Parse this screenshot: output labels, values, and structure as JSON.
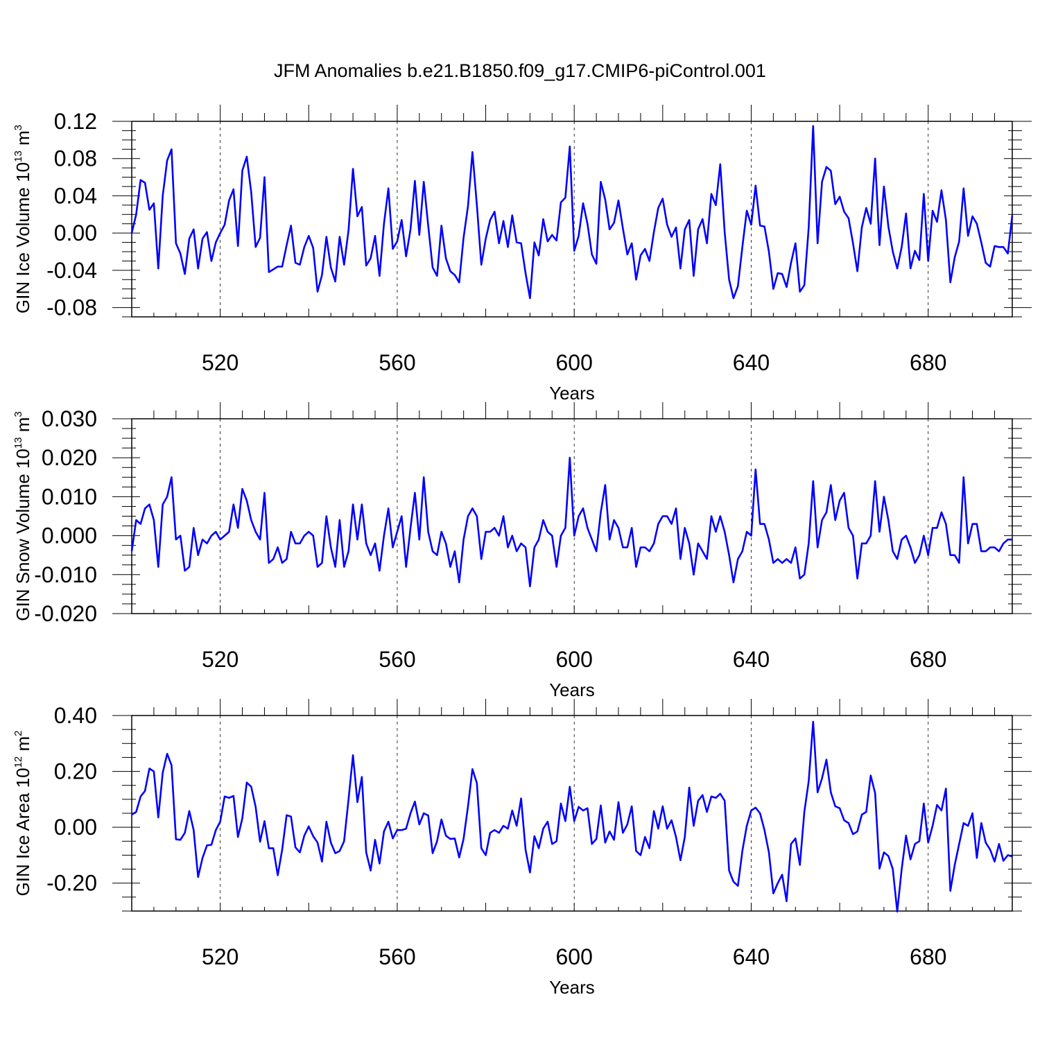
{
  "title": "JFM Anomalies b.e21.B1850.f09_g17.CMIP6-piControl.001",
  "line_color": "#0000ff",
  "chart_data": [
    {
      "type": "line",
      "ylabel": "GIN Ice Volume 10",
      "ylabel_exp": "13",
      "ylabel_unit": " m",
      "ylabel_unit_exp": "3",
      "xlabel": "Years",
      "xlim": [
        500,
        699
      ],
      "ylim": [
        -0.09,
        0.12
      ],
      "yticks": [
        "0.12",
        "0.08",
        "0.04",
        "0.00",
        "-0.04",
        "-0.08"
      ],
      "xticks": [
        "520",
        "560",
        "600",
        "640",
        "680"
      ],
      "series": [
        {
          "values": [
            0.0,
            0.02,
            0.057,
            0.054,
            0.025,
            0.032,
            -0.038,
            0.04,
            0.078,
            0.09,
            -0.011,
            -0.022,
            -0.044,
            -0.006,
            0.004,
            -0.038,
            -0.006,
            0.001,
            -0.03,
            -0.01,
            0.0,
            0.009,
            0.035,
            0.047,
            -0.014,
            0.067,
            0.082,
            0.044,
            -0.015,
            -0.005,
            0.06,
            -0.042,
            -0.039,
            -0.036,
            -0.036,
            -0.013,
            0.008,
            -0.032,
            -0.034,
            -0.015,
            -0.003,
            -0.016,
            -0.063,
            -0.045,
            -0.004,
            -0.037,
            -0.052,
            -0.004,
            -0.034,
            0.003,
            0.069,
            0.018,
            0.028,
            -0.035,
            -0.027,
            -0.003,
            -0.046,
            0.01,
            0.048,
            -0.017,
            -0.009,
            0.014,
            -0.025,
            0.004,
            0.056,
            -0.002,
            0.055,
            0.008,
            -0.037,
            -0.046,
            0.008,
            -0.027,
            -0.041,
            -0.045,
            -0.053,
            -0.005,
            0.029,
            0.087,
            0.03,
            -0.034,
            -0.006,
            0.014,
            0.023,
            -0.011,
            0.013,
            -0.015,
            0.019,
            -0.01,
            -0.011,
            -0.043,
            -0.07,
            -0.01,
            -0.024,
            0.015,
            -0.009,
            -0.002,
            -0.008,
            0.033,
            0.038,
            0.093,
            -0.019,
            -0.003,
            0.032,
            0.01,
            -0.023,
            -0.033,
            0.055,
            0.036,
            0.004,
            0.011,
            0.035,
            0.005,
            -0.023,
            -0.011,
            -0.05,
            -0.024,
            -0.017,
            -0.03,
            0.001,
            0.027,
            0.037,
            0.009,
            -0.004,
            0.006,
            -0.038,
            0.004,
            0.014,
            -0.046,
            0.004,
            0.015,
            -0.011,
            0.042,
            0.03,
            0.074,
            0.001,
            -0.05,
            -0.07,
            -0.057,
            -0.015,
            0.024,
            0.009,
            0.051,
            0.008,
            0.007,
            -0.02,
            -0.06,
            -0.043,
            -0.044,
            -0.058,
            -0.032,
            -0.011,
            -0.063,
            -0.056,
            0.006,
            0.115,
            -0.011,
            0.055,
            0.071,
            0.067,
            0.031,
            0.039,
            0.023,
            0.016,
            -0.011,
            -0.041,
            0.006,
            0.027,
            0.01,
            0.08,
            -0.013,
            0.05,
            0.007,
            -0.02,
            -0.038,
            -0.015,
            0.021,
            -0.038,
            -0.019,
            -0.029,
            0.042,
            -0.03,
            0.024,
            0.012,
            0.046,
            0.014,
            -0.053,
            -0.026,
            -0.009,
            0.048,
            -0.003,
            0.018,
            0.01,
            -0.01,
            -0.032,
            -0.036,
            -0.014,
            -0.015,
            -0.015,
            -0.022,
            0.019
          ]
        }
      ]
    },
    {
      "type": "line",
      "ylabel": "GIN Snow Volume 10",
      "ylabel_exp": "13",
      "ylabel_unit": " m",
      "ylabel_unit_exp": "3",
      "xlabel": "Years",
      "xlim": [
        500,
        699
      ],
      "ylim": [
        -0.02,
        0.03
      ],
      "yticks": [
        "0.030",
        "0.020",
        "0.010",
        "0.000",
        "-0.010",
        "-0.020"
      ],
      "xticks": [
        "520",
        "560",
        "600",
        "640",
        "680"
      ],
      "series": [
        {
          "values": [
            -0.004,
            0.004,
            0.003,
            0.007,
            0.008,
            0.004,
            -0.008,
            0.008,
            0.01,
            0.015,
            -0.001,
            0.0,
            -0.009,
            -0.008,
            0.002,
            -0.005,
            -0.001,
            -0.002,
            0.0,
            0.001,
            -0.001,
            0.0,
            0.001,
            0.008,
            0.002,
            0.012,
            0.009,
            0.004,
            0.001,
            -0.001,
            0.011,
            -0.007,
            -0.006,
            -0.003,
            -0.007,
            -0.006,
            0.001,
            -0.002,
            -0.002,
            0.0,
            0.001,
            0.0,
            -0.008,
            -0.007,
            0.005,
            -0.003,
            -0.008,
            0.004,
            -0.008,
            -0.004,
            0.008,
            -0.001,
            0.008,
            -0.002,
            -0.005,
            -0.002,
            -0.009,
            0.0,
            0.007,
            -0.003,
            0.001,
            0.005,
            -0.008,
            0.002,
            0.011,
            -0.001,
            0.015,
            0.001,
            -0.004,
            -0.005,
            0.001,
            -0.002,
            -0.008,
            -0.004,
            -0.012,
            -0.001,
            0.005,
            0.007,
            0.005,
            -0.006,
            0.001,
            0.001,
            0.002,
            0.0,
            0.005,
            -0.003,
            0.0,
            -0.004,
            -0.002,
            -0.003,
            -0.013,
            -0.003,
            -0.001,
            0.004,
            0.001,
            0.0,
            -0.008,
            0.0,
            0.002,
            0.02,
            0.0,
            0.005,
            0.007,
            0.002,
            -0.001,
            -0.004,
            0.006,
            0.013,
            -0.001,
            0.004,
            0.002,
            -0.003,
            -0.003,
            0.002,
            -0.008,
            -0.003,
            -0.003,
            -0.004,
            -0.002,
            0.003,
            0.005,
            0.005,
            0.003,
            0.007,
            -0.006,
            0.002,
            -0.002,
            -0.01,
            -0.002,
            -0.004,
            -0.006,
            0.005,
            0.001,
            0.005,
            0.001,
            -0.005,
            -0.012,
            -0.006,
            -0.004,
            0.001,
            0.0,
            0.017,
            0.003,
            0.003,
            -0.001,
            -0.007,
            -0.006,
            -0.007,
            -0.006,
            -0.007,
            -0.003,
            -0.011,
            -0.01,
            -0.002,
            0.014,
            -0.003,
            0.004,
            0.006,
            0.013,
            0.004,
            0.009,
            0.011,
            0.002,
            0.0,
            -0.011,
            -0.002,
            -0.002,
            0.0,
            0.014,
            0.001,
            0.01,
            0.004,
            -0.004,
            -0.006,
            -0.001,
            0.0,
            -0.003,
            -0.007,
            -0.005,
            0.0,
            -0.005,
            0.002,
            0.002,
            0.006,
            0.003,
            -0.005,
            -0.005,
            -0.007,
            0.015,
            -0.002,
            0.003,
            0.003,
            -0.004,
            -0.004,
            -0.003,
            -0.003,
            -0.004,
            -0.002,
            -0.001,
            -0.001
          ]
        }
      ]
    },
    {
      "type": "line",
      "ylabel": "GIN Ice Area 10",
      "ylabel_exp": "12",
      "ylabel_unit": " m",
      "ylabel_unit_exp": "2",
      "xlabel": "Years",
      "xlim": [
        500,
        699
      ],
      "ylim": [
        -0.3,
        0.4
      ],
      "yticks": [
        "0.40",
        "0.20",
        "0.00",
        "-0.20"
      ],
      "xticks": [
        "520",
        "560",
        "600",
        "640",
        "680"
      ],
      "series": [
        {
          "values": [
            0.045,
            0.055,
            0.11,
            0.13,
            0.21,
            0.2,
            0.035,
            0.195,
            0.263,
            0.222,
            -0.043,
            -0.045,
            -0.02,
            0.058,
            -0.01,
            -0.178,
            -0.11,
            -0.065,
            -0.063,
            -0.01,
            0.02,
            0.11,
            0.105,
            0.112,
            -0.035,
            0.032,
            0.16,
            0.145,
            0.073,
            -0.052,
            0.022,
            -0.075,
            -0.075,
            -0.172,
            -0.08,
            0.043,
            0.038,
            -0.072,
            -0.09,
            -0.03,
            0.003,
            -0.032,
            -0.055,
            -0.123,
            0.02,
            -0.055,
            -0.093,
            -0.085,
            -0.05,
            0.1,
            0.258,
            0.09,
            0.18,
            -0.09,
            -0.155,
            -0.045,
            -0.13,
            -0.015,
            0.02,
            -0.04,
            -0.01,
            -0.01,
            -0.005,
            0.05,
            0.092,
            0.01,
            0.05,
            0.042,
            -0.093,
            -0.05,
            0.028,
            -0.03,
            -0.042,
            -0.04,
            -0.108,
            -0.042,
            0.075,
            0.208,
            0.158,
            -0.075,
            -0.1,
            -0.02,
            -0.01,
            -0.02,
            0.005,
            -0.005,
            0.06,
            0.005,
            0.103,
            -0.08,
            -0.162,
            -0.032,
            -0.075,
            -0.005,
            0.02,
            -0.06,
            -0.05,
            0.085,
            0.022,
            0.145,
            0.022,
            0.073,
            0.06,
            0.068,
            -0.06,
            -0.042,
            0.078,
            -0.055,
            -0.015,
            -0.045,
            0.09,
            -0.02,
            0.01,
            0.075,
            -0.085,
            -0.1,
            -0.035,
            -0.075,
            0.058,
            -0.005,
            0.075,
            -0.005,
            0.025,
            -0.035,
            -0.118,
            -0.035,
            0.142,
            0.005,
            0.095,
            0.115,
            0.055,
            0.11,
            0.105,
            0.12,
            0.095,
            -0.155,
            -0.195,
            -0.21,
            -0.085,
            0.005,
            0.06,
            0.07,
            0.05,
            -0.01,
            -0.09,
            -0.237,
            -0.2,
            -0.17,
            -0.265,
            -0.06,
            -0.04,
            -0.135,
            0.055,
            0.165,
            0.378,
            0.125,
            0.175,
            0.242,
            0.125,
            0.075,
            0.068,
            0.025,
            0.015,
            -0.025,
            -0.015,
            0.045,
            0.055,
            0.185,
            0.122,
            -0.148,
            -0.09,
            -0.103,
            -0.15,
            -0.302,
            -0.15,
            -0.03,
            -0.115,
            -0.06,
            -0.05,
            0.085,
            -0.055,
            0.005,
            0.08,
            0.06,
            0.138,
            -0.228,
            -0.135,
            -0.06,
            0.015,
            0.005,
            0.05,
            -0.11,
            0.015,
            -0.055,
            -0.08,
            -0.123,
            -0.06,
            -0.12,
            -0.1,
            -0.105
          ]
        }
      ]
    }
  ]
}
